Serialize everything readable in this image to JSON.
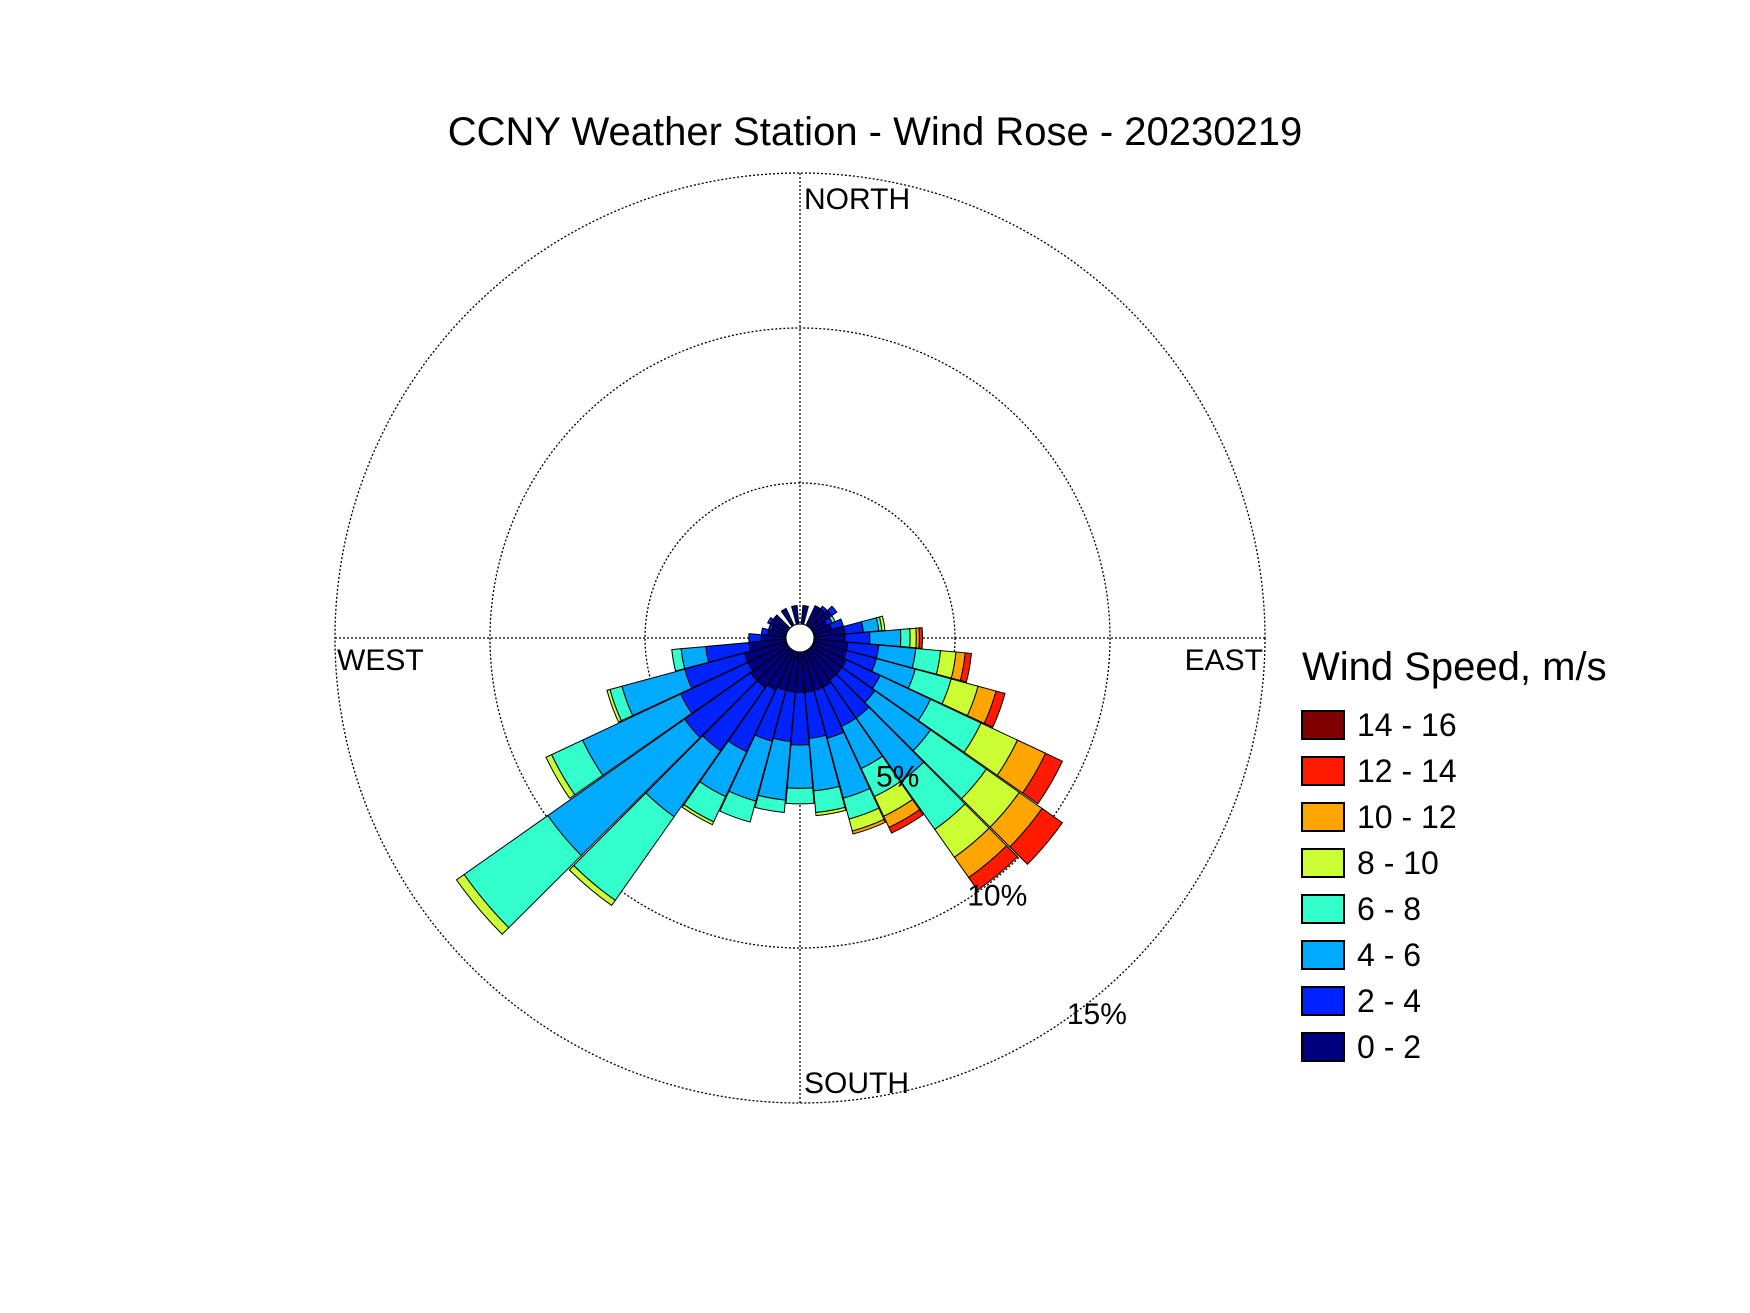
{
  "chart_data": {
    "type": "windrose",
    "title": "CCNY Weather Station - Wind Rose - 20230219",
    "direction_labels": [
      "NORTH",
      "EAST",
      "SOUTH",
      "WEST"
    ],
    "ring_labels": [
      "5%",
      "10%",
      "15%"
    ],
    "ring_values": [
      5,
      10,
      15
    ],
    "rmax": 15,
    "legend": {
      "title": "Wind Speed, m/s",
      "bins": [
        {
          "label": "14 - 16",
          "color": "#800000"
        },
        {
          "label": "12 - 14",
          "color": "#ff1a00"
        },
        {
          "label": "10 - 12",
          "color": "#ffa500"
        },
        {
          "label": "8 - 10",
          "color": "#ccff33"
        },
        {
          "label": "6 - 8",
          "color": "#33ffcc"
        },
        {
          "label": "4 - 6",
          "color": "#00aaff"
        },
        {
          "label": "2 - 4",
          "color": "#0022ff"
        },
        {
          "label": "0 - 2",
          "color": "#00007f"
        }
      ]
    },
    "bin_order_inside_out": [
      "0 - 2",
      "2 - 4",
      "4 - 6",
      "6 - 8",
      "8 - 10",
      "10 - 12",
      "12 - 14",
      "14 - 16"
    ],
    "sectors": [
      {
        "dir": 60,
        "values": [
          0.5,
          0.2,
          0.0,
          0.1,
          0.0,
          0.0,
          0.0,
          0.0
        ]
      },
      {
        "dir": 70,
        "values": [
          0.6,
          0.4,
          0.0,
          0.0,
          0.0,
          0.0,
          0.0,
          0.0
        ]
      },
      {
        "dir": 80,
        "values": [
          1.0,
          0.6,
          0.5,
          0.1,
          0.1,
          0.0,
          0.0,
          0.0
        ]
      },
      {
        "dir": 90,
        "values": [
          1.0,
          0.8,
          1.0,
          0.3,
          0.2,
          0.1,
          0.1,
          0.0
        ]
      },
      {
        "dir": 100,
        "values": [
          1.1,
          1.0,
          1.2,
          0.8,
          0.5,
          0.3,
          0.2,
          0.0
        ]
      },
      {
        "dir": 110,
        "values": [
          1.1,
          1.0,
          1.3,
          1.2,
          0.9,
          0.6,
          0.3,
          0.0
        ]
      },
      {
        "dir": 120,
        "values": [
          1.2,
          1.2,
          1.8,
          1.8,
          1.3,
          1.0,
          0.6,
          0.0
        ]
      },
      {
        "dir": 130,
        "values": [
          1.2,
          1.3,
          2.2,
          2.2,
          1.3,
          0.9,
          0.8,
          0.0
        ]
      },
      {
        "dir": 140,
        "values": [
          1.2,
          1.5,
          2.5,
          1.9,
          1.1,
          0.8,
          0.5,
          0.0
        ]
      },
      {
        "dir": 150,
        "values": [
          1.3,
          1.4,
          1.5,
          1.0,
          0.7,
          0.4,
          0.2,
          0.0
        ]
      },
      {
        "dir": 160,
        "values": [
          1.3,
          1.6,
          2.0,
          0.7,
          0.4,
          0.1,
          0.0,
          0.0
        ]
      },
      {
        "dir": 170,
        "values": [
          1.3,
          1.5,
          1.7,
          0.7,
          0.1,
          0.0,
          0.0,
          0.0
        ]
      },
      {
        "dir": 180,
        "values": [
          1.3,
          1.7,
          1.4,
          0.5,
          0.0,
          0.0,
          0.0,
          0.0
        ]
      },
      {
        "dir": 190,
        "values": [
          1.3,
          1.6,
          1.9,
          0.4,
          0.0,
          0.0,
          0.0,
          0.0
        ]
      },
      {
        "dir": 200,
        "values": [
          1.3,
          1.7,
          2.0,
          0.7,
          0.0,
          0.0,
          0.0,
          0.0
        ]
      },
      {
        "dir": 210,
        "values": [
          1.4,
          2.2,
          1.6,
          0.9,
          0.1,
          0.0,
          0.0,
          0.0
        ]
      },
      {
        "dir": 220,
        "values": [
          1.5,
          2.5,
          2.6,
          3.3,
          0.2,
          0.0,
          0.0,
          0.0
        ]
      },
      {
        "dir": 230,
        "values": [
          1.5,
          2.6,
          5.4,
          3.3,
          0.3,
          0.0,
          0.0,
          0.0
        ]
      },
      {
        "dir": 240,
        "values": [
          1.4,
          2.4,
          3.5,
          1.1,
          0.2,
          0.0,
          0.0,
          0.0
        ]
      },
      {
        "dir": 250,
        "values": [
          1.4,
          2.0,
          2.1,
          0.4,
          0.1,
          0.0,
          0.0,
          0.0
        ]
      },
      {
        "dir": 260,
        "values": [
          1.2,
          1.4,
          0.8,
          0.3,
          0.0,
          0.0,
          0.0,
          0.0
        ]
      },
      {
        "dir": 270,
        "values": [
          0.8,
          0.4,
          0.0,
          0.0,
          0.0,
          0.0,
          0.0,
          0.0
        ]
      },
      {
        "dir": 280,
        "values": [
          0.6,
          0.2,
          0.0,
          0.0,
          0.0,
          0.0,
          0.0,
          0.0
        ]
      },
      {
        "dir": 290,
        "values": [
          0.5,
          0.1,
          0.0,
          0.0,
          0.0,
          0.0,
          0.0,
          0.0
        ]
      },
      {
        "dir": 300,
        "values": [
          0.6,
          0.1,
          0.0,
          0.0,
          0.0,
          0.0,
          0.0,
          0.0
        ]
      },
      {
        "dir": 310,
        "values": [
          0.6,
          0.0,
          0.0,
          0.0,
          0.0,
          0.0,
          0.0,
          0.0
        ]
      },
      {
        "dir": 330,
        "values": [
          0.6,
          0.0,
          0.0,
          0.0,
          0.0,
          0.0,
          0.0,
          0.0
        ]
      },
      {
        "dir": 350,
        "values": [
          0.6,
          0.0,
          0.0,
          0.0,
          0.0,
          0.0,
          0.0,
          0.0
        ]
      },
      {
        "dir": 10,
        "values": [
          0.6,
          0.0,
          0.0,
          0.0,
          0.0,
          0.0,
          0.0,
          0.0
        ]
      },
      {
        "dir": 30,
        "values": [
          0.7,
          0.0,
          0.0,
          0.0,
          0.0,
          0.0,
          0.0,
          0.0
        ]
      },
      {
        "dir": 40,
        "values": [
          0.7,
          0.1,
          0.0,
          0.0,
          0.0,
          0.0,
          0.0,
          0.0
        ]
      },
      {
        "dir": 50,
        "values": [
          0.8,
          0.2,
          0.0,
          0.0,
          0.0,
          0.0,
          0.0,
          0.0
        ]
      }
    ],
    "sector_width_deg": 10,
    "calm_hole": true,
    "grid": true,
    "legend_placement": "right"
  }
}
